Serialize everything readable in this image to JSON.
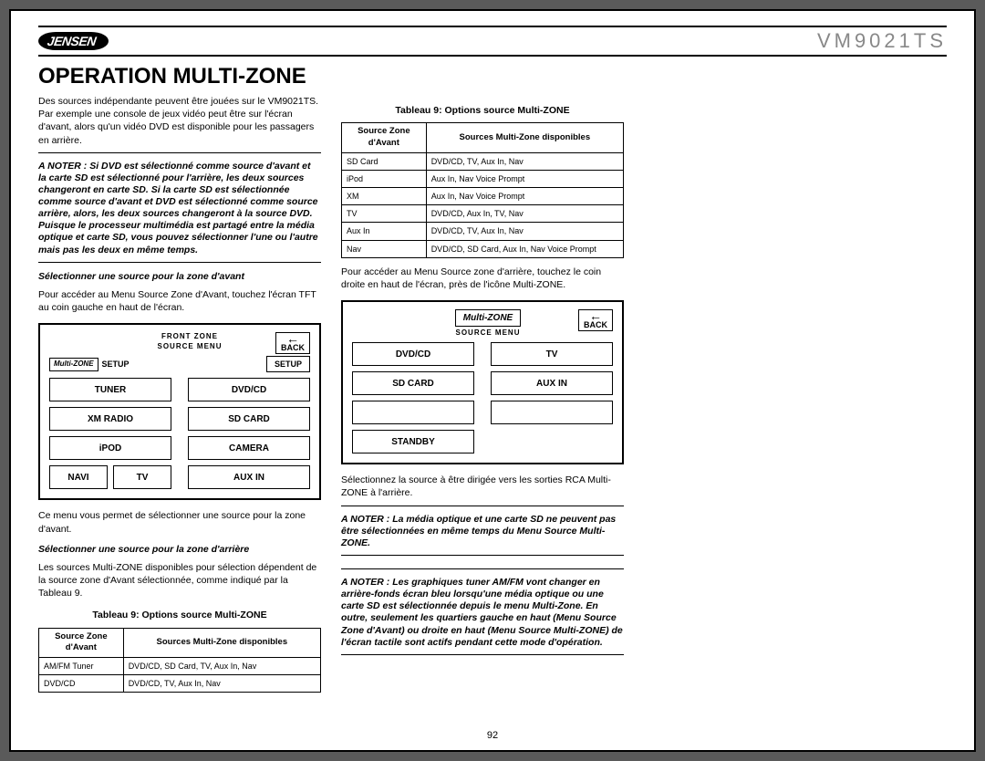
{
  "header": {
    "brand": "JENSEN",
    "model": "VM9021TS"
  },
  "title": "OPERATION MULTI-ZONE",
  "pageNumber": "92",
  "intro": "Des sources indépendante peuvent être jouées sur le VM9021TS. Par exemple une console de jeux vidéo peut être sur l'écran d'avant, alors qu'un vidéo DVD est disponible pour les passagers en arrière.",
  "note1": "A NOTER : Si DVD est sélectionné comme source d'avant et la carte SD est sélectionné pour l'arrière, les deux sources changeront en carte SD. Si la carte SD est sélectionnée comme source d'avant et DVD est sélectionné comme source arrière, alors, les deux sources changeront à la source DVD. Puisque le processeur multimédia est partagé entre la média optique et carte SD, vous pouvez sélectionner l'une ou l'autre mais pas les deux en même temps.",
  "sub_front": "Sélectionner une source pour la zone d'avant",
  "front_p": "Pour accéder au Menu Source Zone d'Avant, touchez l'écran TFT au coin gauche en haut de l'écran.",
  "front_panel": {
    "top": "FRONT ZONE",
    "sub": "SOURCE MENU",
    "mz": "Multi-ZONE",
    "setup": "SETUP",
    "back": "BACK",
    "btns": {
      "tuner": "TUNER",
      "dvdcd": "DVD/CD",
      "xm": "XM RADIO",
      "sd": "SD CARD",
      "ipod": "iPOD",
      "cam": "CAMERA",
      "navi": "NAVI",
      "tv": "TV",
      "aux": "AUX IN"
    }
  },
  "front_after": "Ce menu vous permet de sélectionner une source pour la zone d'avant.",
  "sub_rear": "Sélectionner une source pour la zone d'arrière",
  "rear_p": "Les sources Multi-ZONE disponibles pour sélection dépendent de la source zone d'Avant sélectionnée, comme indiqué par la Tableau 9.",
  "table_caption": "Tableau 9: Options source Multi-ZONE",
  "table_h1": "Source Zone d'Avant",
  "table_h2": "Sources Multi-Zone disponibles",
  "table1": [
    [
      "AM/FM Tuner",
      "DVD/CD, SD Card, TV, Aux In, Nav"
    ],
    [
      "DVD/CD",
      "DVD/CD, TV, Aux In, Nav"
    ]
  ],
  "table2": [
    [
      "SD Card",
      "DVD/CD, TV, Aux In, Nav"
    ],
    [
      "iPod",
      "Aux In, Nav Voice Prompt"
    ],
    [
      "XM",
      "Aux In, Nav Voice Prompt"
    ],
    [
      "TV",
      "DVD/CD, Aux In, TV, Nav"
    ],
    [
      "Aux In",
      "DVD/CD, TV, Aux In, Nav"
    ],
    [
      "Nav",
      "DVD/CD, SD Card, Aux In, Nav Voice Prompt"
    ]
  ],
  "rear_access": "Pour accéder au Menu Source zone d'arrière, touchez le coin droite en haut de l'écran, près de l'icône Multi-ZONE.",
  "rear_panel": {
    "top": "Multi-ZONE",
    "sub": "SOURCE MENU",
    "back": "BACK",
    "btns": {
      "dvdcd": "DVD/CD",
      "tv": "TV",
      "sd": "SD CARD",
      "aux": "AUX IN",
      "standby": "STANDBY"
    }
  },
  "rear_after": "Sélectionnez la source à être dirigée vers les sorties RCA Multi-ZONE à l'arrière.",
  "note2": "A NOTER : La média optique et une carte SD ne peuvent pas être sélectionnées en même temps du Menu Source Multi-ZONE.",
  "note3": "A NOTER : Les graphiques tuner AM/FM vont changer en arrière-fonds écran bleu lorsqu'une média optique ou une carte SD est sélectionnée depuis le menu Multi-Zone. En outre, seulement les quartiers gauche en haut (Menu Source Zone d'Avant) ou droite en haut (Menu Source Multi-ZONE) de l'écran tactile sont actifs pendant cette mode d'opération."
}
